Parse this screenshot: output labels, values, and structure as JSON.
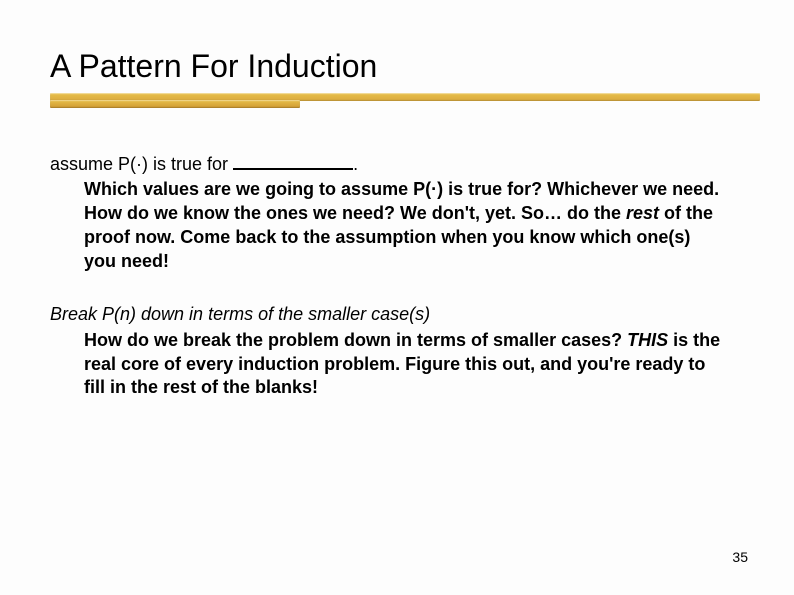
{
  "title": "A Pattern For Induction",
  "block1": {
    "lead_prefix": "assume ",
    "lead_func": "P(·)",
    "lead_mid": " is true for ",
    "lead_suffix": ".",
    "sub_a": "Which values are we going to assume ",
    "sub_a_func": "P(·)",
    "sub_a_tail": " is true for?",
    "sub_b": "Whichever we need.  How do we know the ones we need?  We don't, yet.  So… do the ",
    "sub_b_rest": "rest",
    "sub_b_tail": " of the proof now.  Come back to the assumption when you know which one(s) you need!"
  },
  "block2": {
    "lead": "Break P(n) down in terms of the smaller case(s)",
    "sub_a": "How do we break the problem down in terms of smaller cases?  ",
    "sub_a_this": "THIS",
    "sub_a_tail": " is the real core of every induction problem.  Figure this out, and you're ready to fill in the rest of the blanks!"
  },
  "pagenum": "35",
  "colors": {
    "bar_light": "#e8c04a",
    "bar_dark": "#cf9a32",
    "text": "#000000",
    "background": "#fdfdfd"
  },
  "typography": {
    "title_fontsize": 32,
    "body_fontsize": 18,
    "pagenum_fontsize": 14,
    "font_family": "Arial"
  }
}
